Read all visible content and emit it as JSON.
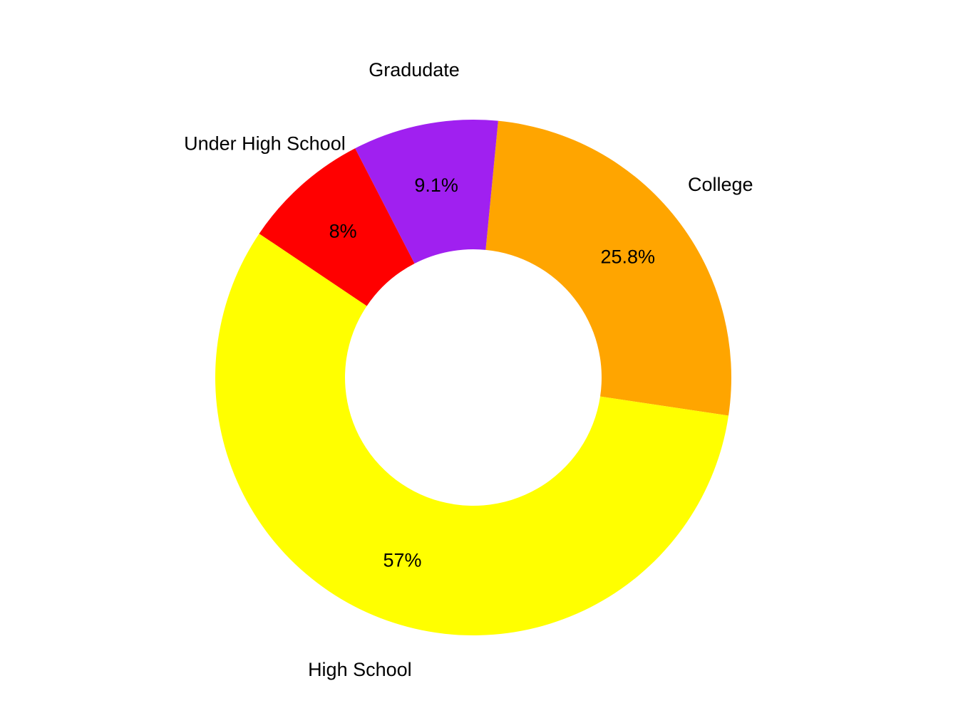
{
  "chart_data": {
    "type": "pie",
    "variant": "donut",
    "title": "",
    "categories": [
      "College",
      "Gradudate",
      "Under High School",
      "High School"
    ],
    "values": [
      25.8,
      9.1,
      8.0,
      57.0
    ],
    "percent_labels": [
      "25.8%",
      "9.1%",
      "8%",
      "57%"
    ],
    "colors": [
      "#ffa500",
      "#a020f0",
      "#ff0000",
      "#ffff00"
    ],
    "legend": "none"
  }
}
